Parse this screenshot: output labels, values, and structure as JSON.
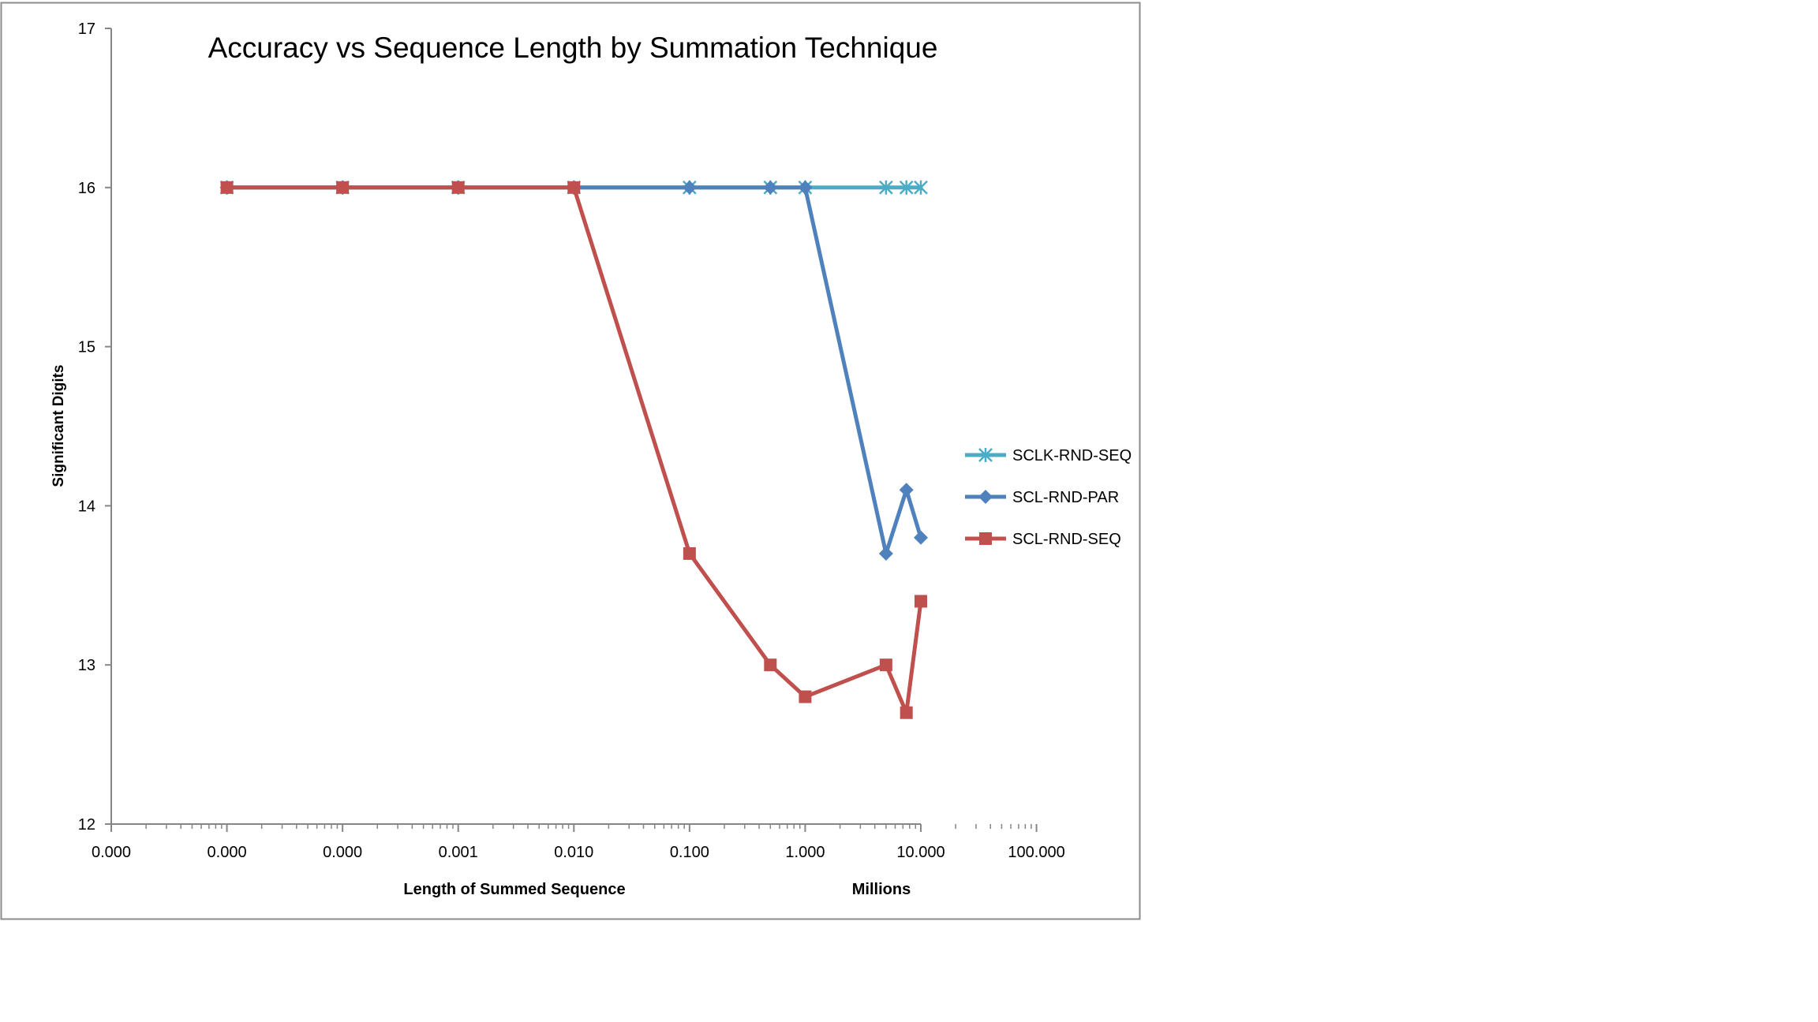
{
  "chart_data": {
    "type": "line",
    "title": "Accuracy vs Sequence Length by Summation Technique",
    "xlabel": "Length of Summed Sequence",
    "xunit_label": "Millions",
    "ylabel": "Significant  Digits",
    "x_scale": "log",
    "xlim": [
      1e-05,
      100
    ],
    "ylim": [
      12,
      17
    ],
    "x_tick_labels": [
      "0.000",
      "0.000",
      "0.000",
      "0.001",
      "0.010",
      "0.100",
      "1.000",
      "10.000",
      "100.000"
    ],
    "y_ticks": [
      12,
      13,
      14,
      15,
      16,
      17
    ],
    "grid": false,
    "legend_position": "right",
    "series": [
      {
        "name": "SCLK-RND-SEQ",
        "color": "#4BACC6",
        "marker": "asterisk",
        "x": [
          0.0001,
          0.001,
          0.01,
          0.1,
          1,
          5,
          10,
          50,
          75,
          100
        ],
        "y": [
          16,
          16,
          16,
          16,
          16,
          16,
          16,
          16,
          16,
          16
        ]
      },
      {
        "name": "SCL-RND-PAR",
        "color": "#4F81BD",
        "marker": "diamond",
        "x": [
          0.0001,
          0.001,
          0.01,
          0.1,
          1,
          5,
          10,
          50,
          75,
          100
        ],
        "y": [
          16,
          16,
          16,
          16,
          16,
          16,
          16,
          13.7,
          14.1,
          13.8
        ]
      },
      {
        "name": "SCL-RND-SEQ",
        "color": "#C0504D",
        "marker": "square",
        "x": [
          0.0001,
          0.001,
          0.01,
          0.1,
          1,
          5,
          10,
          50,
          75,
          100
        ],
        "y": [
          16,
          16,
          16,
          16,
          13.7,
          13,
          12.8,
          13,
          12.7,
          13.4
        ]
      }
    ]
  }
}
